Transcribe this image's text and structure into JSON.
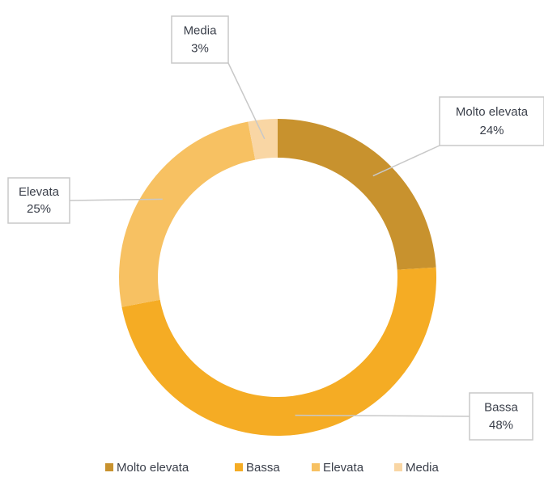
{
  "chart_data": {
    "type": "donut",
    "categories": [
      "Molto elevata",
      "Bassa",
      "Elevata",
      "Media"
    ],
    "values": [
      24,
      48,
      25,
      3
    ],
    "value_labels": [
      "24%",
      "48%",
      "25%",
      "3%"
    ],
    "colors": [
      "#c8922e",
      "#f5ac24",
      "#f7c162",
      "#f9d6a4"
    ],
    "legend": "bottom"
  }
}
